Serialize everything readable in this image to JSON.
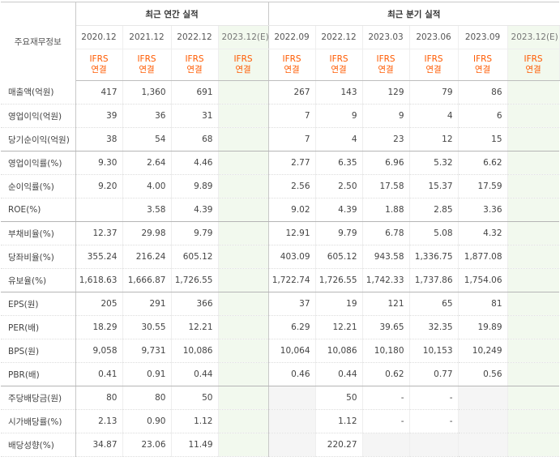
{
  "header": {
    "corner_label": "주요재무정보",
    "annual_title": "최근 연간 실적",
    "quarter_title": "최근 분기 실적",
    "annual_periods": [
      "2020.12",
      "2021.12",
      "2022.12",
      "2023.12(E)"
    ],
    "quarter_periods": [
      "2022.09",
      "2022.12",
      "2023.03",
      "2023.06",
      "2023.09",
      "2023.12(E)"
    ],
    "ifrs_top": "IFRS",
    "ifrs_bottom": "연결"
  },
  "rows": [
    {
      "label": "매출액(억원)",
      "annual": [
        "417",
        "1,360",
        "691",
        ""
      ],
      "quarter": [
        "267",
        "143",
        "129",
        "79",
        "86",
        ""
      ]
    },
    {
      "label": "영업이익(억원)",
      "annual": [
        "39",
        "36",
        "31",
        ""
      ],
      "quarter": [
        "7",
        "9",
        "9",
        "4",
        "6",
        ""
      ]
    },
    {
      "label": "당기순이익(억원)",
      "annual": [
        "38",
        "54",
        "68",
        ""
      ],
      "quarter": [
        "7",
        "4",
        "23",
        "12",
        "15",
        ""
      ]
    },
    {
      "label": "영업이익률(%)",
      "annual": [
        "9.30",
        "2.64",
        "4.46",
        ""
      ],
      "quarter": [
        "2.77",
        "6.35",
        "6.96",
        "5.32",
        "6.62",
        ""
      ]
    },
    {
      "label": "순이익률(%)",
      "annual": [
        "9.20",
        "4.00",
        "9.89",
        ""
      ],
      "quarter": [
        "2.56",
        "2.50",
        "17.58",
        "15.37",
        "17.59",
        ""
      ]
    },
    {
      "label": "ROE(%)",
      "annual": [
        "",
        "3.58",
        "4.39",
        ""
      ],
      "quarter": [
        "9.02",
        "4.39",
        "1.88",
        "2.85",
        "3.36",
        ""
      ]
    },
    {
      "label": "부채비율(%)",
      "annual": [
        "12.37",
        "29.98",
        "9.79",
        ""
      ],
      "quarter": [
        "12.91",
        "9.79",
        "6.78",
        "5.08",
        "4.32",
        ""
      ]
    },
    {
      "label": "당좌비율(%)",
      "annual": [
        "355.24",
        "216.24",
        "605.12",
        ""
      ],
      "quarter": [
        "403.09",
        "605.12",
        "943.58",
        "1,336.75",
        "1,877.08",
        ""
      ]
    },
    {
      "label": "유보율(%)",
      "annual": [
        "1,618.63",
        "1,666.87",
        "1,726.55",
        ""
      ],
      "quarter": [
        "1,722.74",
        "1,726.55",
        "1,742.33",
        "1,737.86",
        "1,754.06",
        ""
      ]
    },
    {
      "label": "EPS(원)",
      "annual": [
        "205",
        "291",
        "366",
        ""
      ],
      "quarter": [
        "37",
        "19",
        "121",
        "65",
        "81",
        ""
      ]
    },
    {
      "label": "PER(배)",
      "annual": [
        "18.29",
        "30.55",
        "12.21",
        ""
      ],
      "quarter": [
        "6.29",
        "12.21",
        "39.65",
        "32.35",
        "19.89",
        ""
      ]
    },
    {
      "label": "BPS(원)",
      "annual": [
        "9,058",
        "9,731",
        "10,086",
        ""
      ],
      "quarter": [
        "10,064",
        "10,086",
        "10,180",
        "10,153",
        "10,249",
        ""
      ]
    },
    {
      "label": "PBR(배)",
      "annual": [
        "0.41",
        "0.91",
        "0.44",
        ""
      ],
      "quarter": [
        "0.46",
        "0.44",
        "0.62",
        "0.77",
        "0.56",
        ""
      ]
    },
    {
      "label": "주당배당금(원)",
      "annual": [
        "80",
        "80",
        "50",
        ""
      ],
      "quarter": [
        "",
        "50",
        "-",
        "-",
        "",
        ""
      ]
    },
    {
      "label": "시가배당률(%)",
      "annual": [
        "2.13",
        "0.90",
        "1.12",
        ""
      ],
      "quarter": [
        "",
        "1.12",
        "-",
        "-",
        "",
        ""
      ]
    },
    {
      "label": "배당성향(%)",
      "annual": [
        "34.87",
        "23.06",
        "11.49",
        ""
      ],
      "quarter": [
        "",
        "220.27",
        "",
        "",
        "",
        ""
      ]
    }
  ],
  "colors": {
    "ifrs_orange": "#ff5a00",
    "estimate_bg": "#f2f9ee",
    "blank_bg": "#f5f5f5"
  }
}
